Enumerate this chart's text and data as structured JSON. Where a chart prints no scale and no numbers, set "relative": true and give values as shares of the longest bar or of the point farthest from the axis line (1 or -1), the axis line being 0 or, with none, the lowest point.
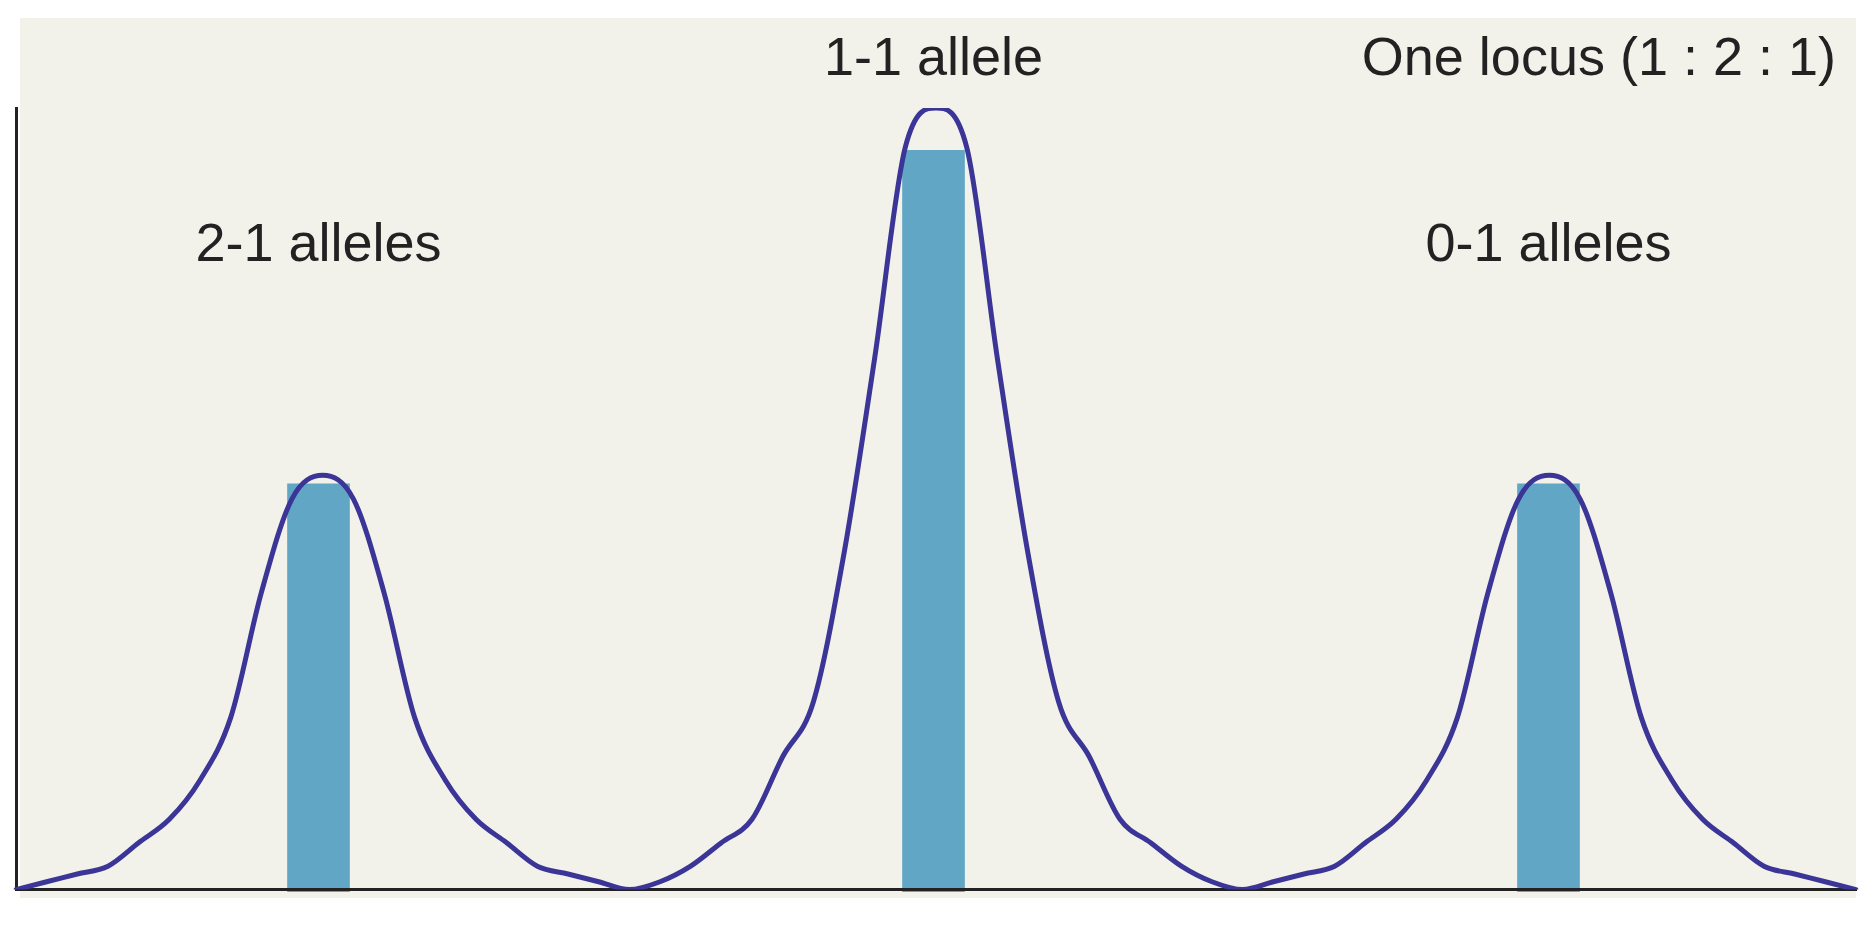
{
  "chart_data": [
    {
      "type": "bar",
      "relative": true,
      "grid": false,
      "legend": false,
      "title": "One locus (1 : 2 : 1)",
      "annotations": [
        "2-1 alleles",
        "1-1 allele",
        "0-1 alleles"
      ],
      "categories": [
        null,
        null,
        null
      ],
      "series": [
        {
          "color": "#62a6c6",
          "values": [
            0.55,
            1,
            0.55
          ]
        }
      ]
    },
    {
      "type": "line",
      "relative": true,
      "grid": false,
      "legend": false,
      "categories": [
        null,
        null,
        null,
        null,
        null,
        null,
        null,
        null,
        null,
        null,
        null,
        null,
        null,
        null,
        null,
        null,
        null,
        null,
        null,
        null,
        null,
        null,
        null,
        null,
        null,
        null,
        null,
        null,
        null,
        null,
        null,
        null,
        null,
        null,
        null,
        null,
        null,
        null,
        null,
        null,
        null,
        null,
        null,
        null,
        null,
        null,
        null,
        null,
        null,
        null,
        null,
        null,
        null,
        null,
        null,
        null,
        null,
        null,
        null,
        null,
        null
      ],
      "series": [
        {
          "color": "#3a3596",
          "marker": "none",
          "line_style": "solid",
          "values": [
            0,
            0.01,
            0.02,
            0.03,
            0.06,
            0.09,
            0.14,
            0.22,
            0.38,
            0.5,
            0.53,
            0.5,
            0.38,
            0.22,
            0.14,
            0.09,
            0.06,
            0.03,
            0.02,
            0.01,
            0,
            0.01,
            0.03,
            0.06,
            0.09,
            0.17,
            0.24,
            0.43,
            0.68,
            0.95,
            1,
            0.95,
            0.68,
            0.43,
            0.24,
            0.17,
            0.09,
            0.06,
            0.03,
            0.01,
            0,
            0.01,
            0.02,
            0.03,
            0.06,
            0.09,
            0.14,
            0.22,
            0.38,
            0.5,
            0.53,
            0.5,
            0.38,
            0.22,
            0.14,
            0.09,
            0.06,
            0.03,
            0.02,
            0.01,
            0
          ]
        }
      ]
    }
  ]
}
